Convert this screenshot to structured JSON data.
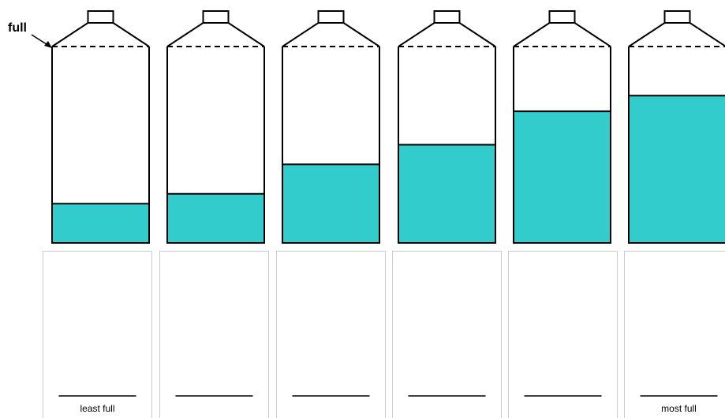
{
  "full_label": "full",
  "liquid_color": "#33CCCC",
  "outline_color": "#000000",
  "slot_border_color": "#cccccc",
  "bottles": [
    {
      "fill_fraction": 0.2
    },
    {
      "fill_fraction": 0.25
    },
    {
      "fill_fraction": 0.4
    },
    {
      "fill_fraction": 0.5
    },
    {
      "fill_fraction": 0.67
    },
    {
      "fill_fraction": 0.75
    }
  ],
  "answer_slots": [
    {
      "label": "least full"
    },
    {
      "label": ""
    },
    {
      "label": ""
    },
    {
      "label": ""
    },
    {
      "label": ""
    },
    {
      "label": "most full"
    }
  ]
}
